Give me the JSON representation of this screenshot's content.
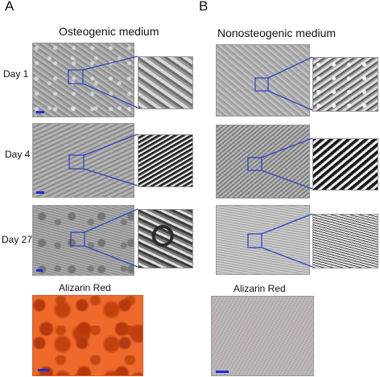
{
  "figure": {
    "panels": [
      {
        "letter": "A",
        "title": "Osteogenic medium",
        "stain_label": "Alizarin Red"
      },
      {
        "letter": "B",
        "title": "Nonosteogenic medium",
        "stain_label": "Alizarin Red"
      }
    ],
    "rows": [
      {
        "label": "Day 1"
      },
      {
        "label": "Day 4"
      },
      {
        "label": "Day 27"
      }
    ],
    "colors": {
      "zoom_box": "#2f46c8",
      "scale_bar": "#1f2fd8",
      "alizarin_positive": "#ee6a2a",
      "alizarin_negative": "#bfb9ba"
    }
  }
}
